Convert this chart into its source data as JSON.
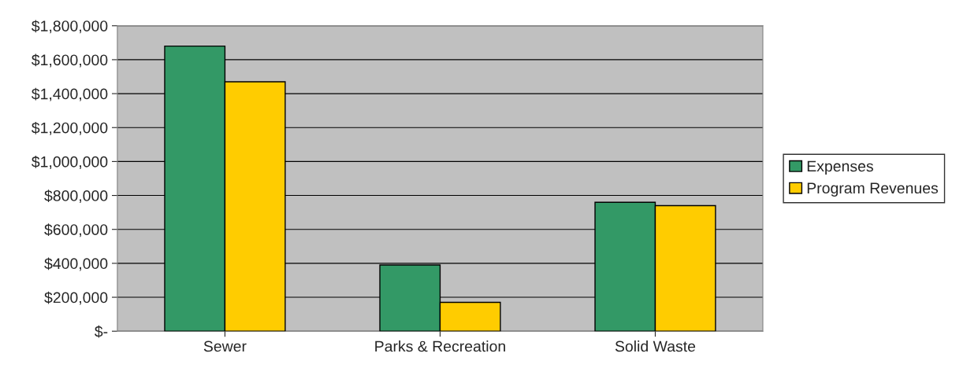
{
  "chart_data": {
    "type": "bar",
    "categories": [
      "Sewer",
      "Parks & Recreation",
      "Solid Waste"
    ],
    "series": [
      {
        "name": "Expenses",
        "color": "#339966",
        "values": [
          1680000,
          390000,
          760000
        ]
      },
      {
        "name": "Program Revenues",
        "color": "#ffcc00",
        "values": [
          1470000,
          170000,
          740000
        ]
      }
    ],
    "ylim": [
      0,
      1800000
    ],
    "yticks": [
      {
        "value": 0,
        "label": "$-"
      },
      {
        "value": 200000,
        "label": "$200,000"
      },
      {
        "value": 400000,
        "label": "$400,000"
      },
      {
        "value": 600000,
        "label": "$600,000"
      },
      {
        "value": 800000,
        "label": "$800,000"
      },
      {
        "value": 1000000,
        "label": "$1,000,000"
      },
      {
        "value": 1200000,
        "label": "$1,200,000"
      },
      {
        "value": 1400000,
        "label": "$1,400,000"
      },
      {
        "value": 1600000,
        "label": "$1,600,000"
      },
      {
        "value": 1800000,
        "label": "$1,800,000"
      }
    ],
    "grid": "y",
    "legend": "right"
  }
}
